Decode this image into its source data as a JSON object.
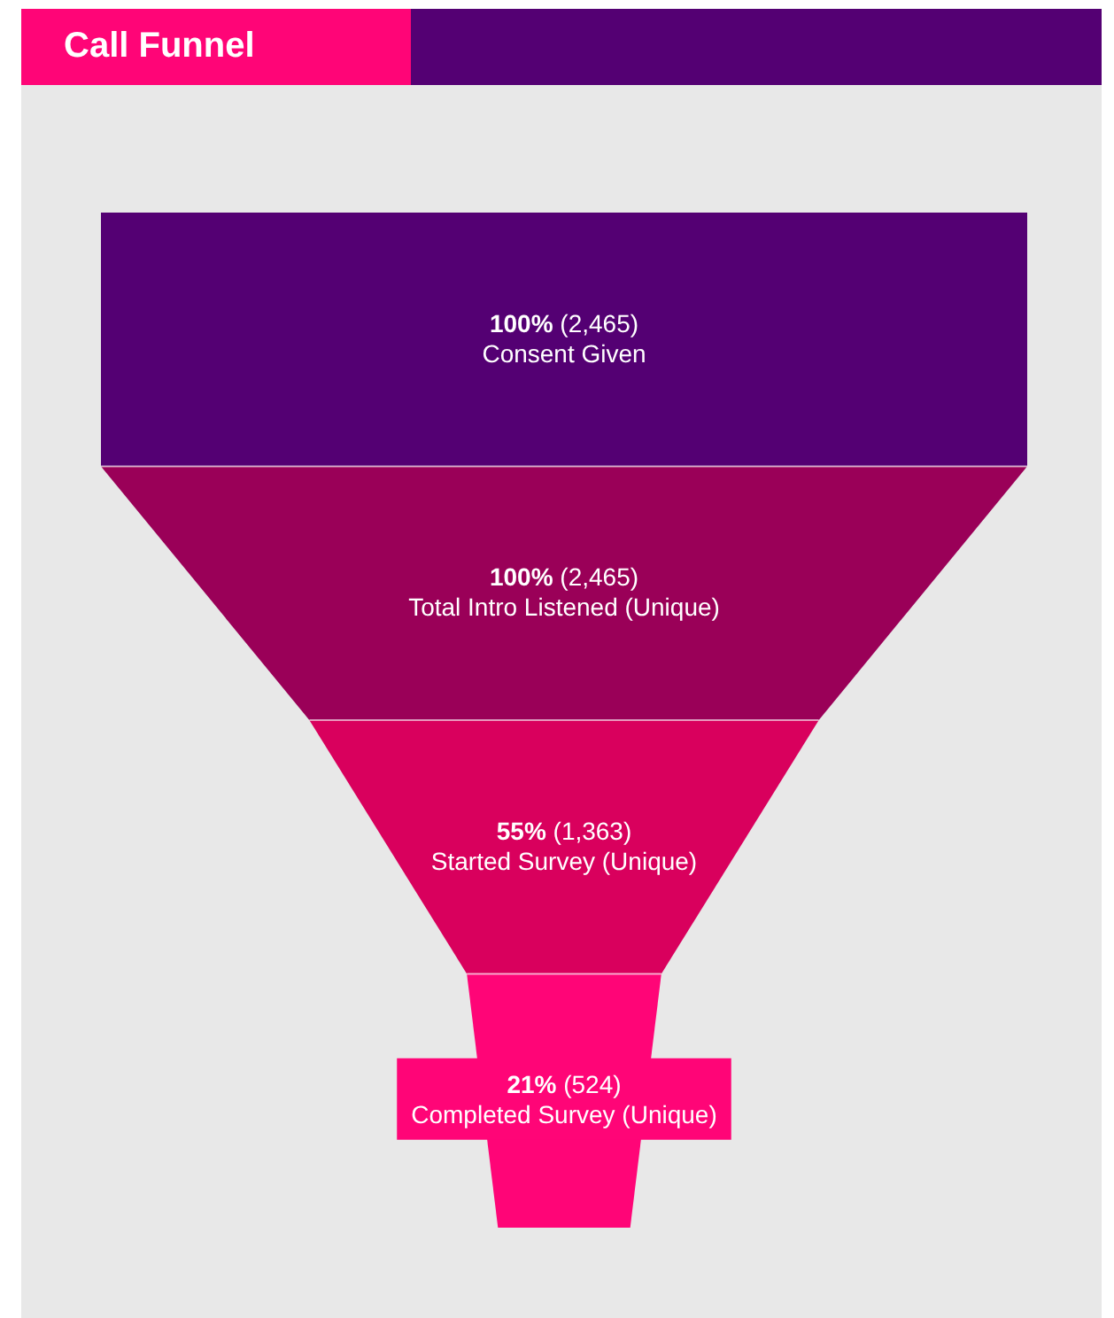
{
  "chart_data": {
    "type": "other",
    "title": "Call Funnel",
    "categories": [
      "Consent Given",
      "Total Intro Listened (Unique)",
      "Started Survey (Unique)",
      "Completed Survey (Unique)"
    ],
    "values": [
      100,
      100,
      55,
      21
    ],
    "value_labels": [
      "100% (2,465)",
      "100% (2,465)",
      "55% (1,363)",
      "21% (524)"
    ],
    "colors": [
      "#540073",
      "#9a0058",
      "#d9005d",
      "#ff0577"
    ]
  }
}
